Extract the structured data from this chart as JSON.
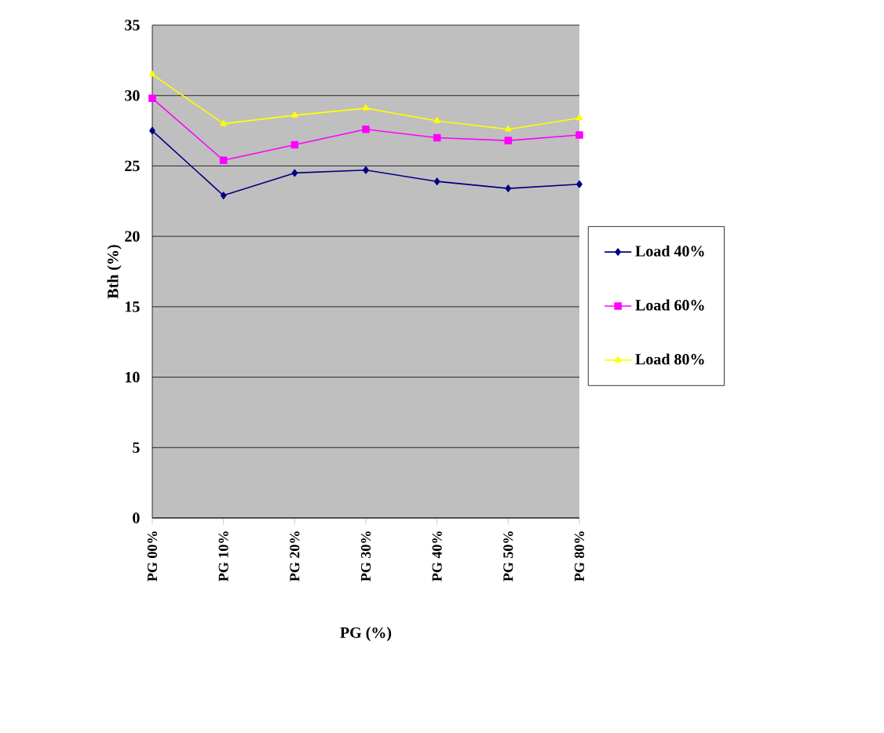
{
  "chart_data": {
    "type": "line",
    "xlabel": "PG (%)",
    "ylabel": "Bth (%)",
    "categories": [
      "PG 00%",
      "PG 10%",
      "PG 20%",
      "PG 30%",
      "PG 40%",
      "PG 50%",
      "PG 80%"
    ],
    "series": [
      {
        "name": "Load 40%",
        "color": "#000080",
        "marker": "diamond",
        "values": [
          27.5,
          22.9,
          24.5,
          24.7,
          23.9,
          23.4,
          23.7
        ]
      },
      {
        "name": "Load 60%",
        "color": "#ff00ff",
        "marker": "square",
        "values": [
          29.8,
          25.4,
          26.5,
          27.6,
          27.0,
          26.8,
          27.2
        ]
      },
      {
        "name": "Load 80%",
        "color": "#ffff00",
        "marker": "triangle",
        "values": [
          31.5,
          28.0,
          28.6,
          29.1,
          28.2,
          27.6,
          28.4
        ]
      }
    ],
    "ylim": [
      0,
      35
    ],
    "yticks": [
      0,
      5,
      10,
      15,
      20,
      25,
      30,
      35
    ],
    "grid": "y",
    "legend": "right",
    "line_style": "solid"
  }
}
